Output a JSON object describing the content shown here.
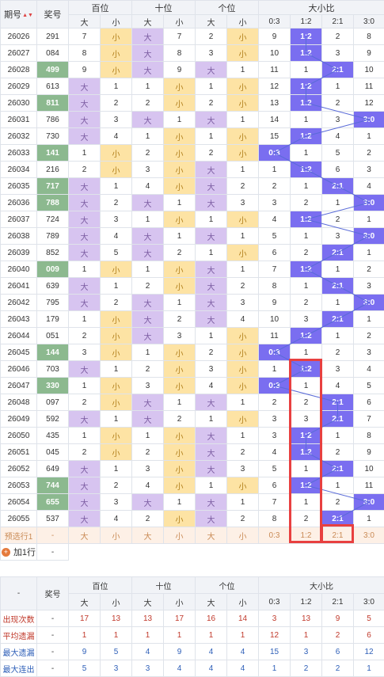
{
  "header": {
    "period": "期号",
    "number": "奖号",
    "groups": [
      "百位",
      "十位",
      "个位",
      "大小比"
    ],
    "big": "大",
    "small": "小",
    "ratios": [
      "0:3",
      "1:2",
      "2:1",
      "3:0"
    ],
    "sort_icon": "sort-up-down-icon"
  },
  "rows": [
    {
      "p": "26026",
      "n": "291",
      "h": "7",
      "t": "7",
      "o": "2",
      "r": [
        9,
        "1:2",
        2,
        8
      ]
    },
    {
      "p": "26027",
      "n": "084",
      "h": "8",
      "t": "8",
      "o": "3",
      "r": [
        10,
        "1:2",
        3,
        9
      ]
    },
    {
      "p": "26028",
      "n": "499",
      "h": "9",
      "t": "9",
      "o": "1",
      "r": [
        11,
        1,
        "2:1",
        10
      ]
    },
    {
      "p": "26029",
      "n": "613",
      "h": "1",
      "t": "1",
      "o": "1",
      "r": [
        12,
        "1:2",
        1,
        11
      ]
    },
    {
      "p": "26030",
      "n": "811",
      "h": "2",
      "t": "2",
      "o": "2",
      "r": [
        13,
        "1:2",
        2,
        12
      ]
    },
    {
      "p": "26031",
      "n": "786",
      "h": "3",
      "t": "1",
      "o": "1",
      "r": [
        14,
        1,
        3,
        "3:0"
      ]
    },
    {
      "p": "26032",
      "n": "730",
      "h": "4",
      "t": "1",
      "o": "1",
      "r": [
        15,
        "1:2",
        4,
        1
      ]
    },
    {
      "p": "26033",
      "n": "141",
      "h": "1",
      "t": "2",
      "o": "2",
      "r": [
        "0:3",
        1,
        5,
        2
      ]
    },
    {
      "p": "26034",
      "n": "216",
      "h": "2",
      "t": "3",
      "o": "1",
      "r": [
        1,
        "1:2",
        6,
        3
      ]
    },
    {
      "p": "26035",
      "n": "717",
      "h": "1",
      "t": "4",
      "o": "2",
      "r": [
        2,
        1,
        "2:1",
        4
      ]
    },
    {
      "p": "26036",
      "n": "788",
      "h": "2",
      "t": "1",
      "o": "3",
      "r": [
        3,
        2,
        1,
        "3:0"
      ]
    },
    {
      "p": "26037",
      "n": "724",
      "h": "3",
      "t": "1",
      "o": "1",
      "r": [
        4,
        "1:2",
        2,
        1
      ]
    },
    {
      "p": "26038",
      "n": "789",
      "h": "4",
      "t": "1",
      "o": "1",
      "r": [
        5,
        1,
        3,
        "3:0"
      ]
    },
    {
      "p": "26039",
      "n": "852",
      "h": "5",
      "t": "2",
      "o": "1",
      "r": [
        6,
        2,
        "2:1",
        1
      ]
    },
    {
      "p": "26040",
      "n": "009",
      "h": "1",
      "t": "1",
      "o": "1",
      "r": [
        7,
        "1:2",
        1,
        2
      ]
    },
    {
      "p": "26041",
      "n": "639",
      "h": "1",
      "t": "2",
      "o": "2",
      "r": [
        8,
        1,
        "2:1",
        3
      ]
    },
    {
      "p": "26042",
      "n": "795",
      "h": "2",
      "t": "1",
      "o": "3",
      "r": [
        9,
        2,
        1,
        "3:0"
      ]
    },
    {
      "p": "26043",
      "n": "179",
      "h": "1",
      "t": "2",
      "o": "4",
      "r": [
        10,
        3,
        "2:1",
        1
      ]
    },
    {
      "p": "26044",
      "n": "051",
      "h": "2",
      "t": "3",
      "o": "1",
      "r": [
        11,
        "1:2",
        1,
        2
      ]
    },
    {
      "p": "26045",
      "n": "144",
      "h": "3",
      "t": "1",
      "o": "2",
      "r": [
        "0:3",
        1,
        2,
        3
      ]
    },
    {
      "p": "26046",
      "n": "703",
      "h": "1",
      "t": "2",
      "o": "3",
      "r": [
        1,
        "1:2",
        3,
        4
      ]
    },
    {
      "p": "26047",
      "n": "330",
      "h": "1",
      "t": "3",
      "o": "4",
      "r": [
        "0:3",
        1,
        4,
        5
      ]
    },
    {
      "p": "26048",
      "n": "097",
      "h": "2",
      "t": "1",
      "o": "1",
      "r": [
        2,
        2,
        "2:1",
        6
      ]
    },
    {
      "p": "26049",
      "n": "592",
      "h": "1",
      "t": "2",
      "o": "1",
      "r": [
        3,
        3,
        "2:1",
        7
      ]
    },
    {
      "p": "26050",
      "n": "435",
      "h": "1",
      "t": "1",
      "o": "1",
      "r": [
        3,
        "1:2",
        1,
        8
      ]
    },
    {
      "p": "26051",
      "n": "045",
      "h": "2",
      "t": "2",
      "o": "2",
      "r": [
        4,
        "1:2",
        2,
        9
      ]
    },
    {
      "p": "26052",
      "n": "649",
      "h": "1",
      "t": "3",
      "o": "3",
      "r": [
        5,
        1,
        "2:1",
        10
      ]
    },
    {
      "p": "26053",
      "n": "744",
      "h": "2",
      "t": "4",
      "o": "1",
      "r": [
        6,
        "1:2",
        1,
        11
      ]
    },
    {
      "p": "26054",
      "n": "655",
      "h": "3",
      "t": "1",
      "o": "1",
      "r": [
        7,
        1,
        2,
        "3:0"
      ]
    },
    {
      "p": "26055",
      "n": "537",
      "h": "4",
      "t": "2",
      "o": "2",
      "r": [
        8,
        2,
        "2:1",
        1
      ]
    }
  ],
  "prediction": {
    "label": "预选行1",
    "number": "-",
    "cells": [
      "大",
      "小",
      "大",
      "小",
      "大",
      "小"
    ],
    "ratios": [
      "0:3",
      "1:2",
      "2:1",
      "3:0"
    ]
  },
  "add_row": {
    "label": "加1行",
    "icon": "plus-circle-icon",
    "number": "-"
  },
  "footer_header": {
    "period": "-",
    "number": "奖号"
  },
  "stats": [
    {
      "label": "出现次数",
      "number": "-",
      "values": [
        17,
        13,
        13,
        17,
        16,
        14,
        3,
        13,
        9,
        5
      ],
      "color": "red"
    },
    {
      "label": "平均遗漏",
      "number": "-",
      "values": [
        1,
        1,
        1,
        1,
        1,
        1,
        12,
        1,
        2,
        6
      ],
      "color": "red"
    },
    {
      "label": "最大遗漏",
      "number": "-",
      "values": [
        9,
        5,
        4,
        9,
        4,
        4,
        15,
        3,
        6,
        12
      ],
      "color": "blue"
    },
    {
      "label": "最大连出",
      "number": "-",
      "values": [
        5,
        3,
        3,
        4,
        4,
        4,
        1,
        2,
        2,
        1
      ],
      "color": "blue"
    }
  ],
  "colors": {
    "big_bg": "#d7c4f0",
    "small_bg": "#fde3a4",
    "ratio_bg": "#7a6ef0",
    "number_hl": "#8cb98f",
    "frame": "#e84040"
  }
}
